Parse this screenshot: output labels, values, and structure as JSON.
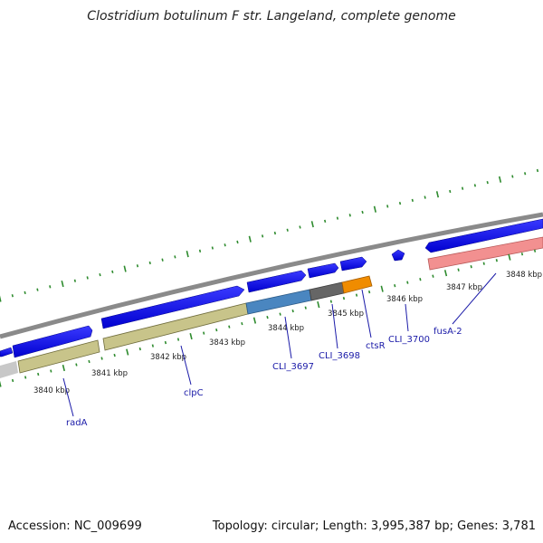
{
  "title": "Clostridium botulinum F str. Langeland, complete genome",
  "footer": {
    "accession": "Accession: NC_009699",
    "summary": "Topology: circular; Length: 3,995,387 bp; Genes: 3,781"
  },
  "scale_labels": [
    "3840 kbp",
    "3841 kbp",
    "3842 kbp",
    "3843 kbp",
    "3844 kbp",
    "3845 kbp",
    "3846 kbp",
    "3847 kbp",
    "3848 kbp"
  ],
  "gene_labels": [
    "radA",
    "clpC",
    "CLI_3697",
    "CLI_3698",
    "ctsR",
    "CLI_3700",
    "fusA-2"
  ],
  "colors": {
    "cds_arrow": "#0000f0",
    "gc_track_line": "#228b22",
    "backbone": "#808080",
    "radA_feature": "#c0c0c0",
    "clpC_feature": "#c8c48a",
    "CLI_3697_feature": "#4a86c0",
    "CLI_3698_feature": "#666666",
    "ctsR_feature": "#f08c00",
    "fusA-2_feature": "#f08a8a",
    "gene_label": "#1a1aa8"
  }
}
